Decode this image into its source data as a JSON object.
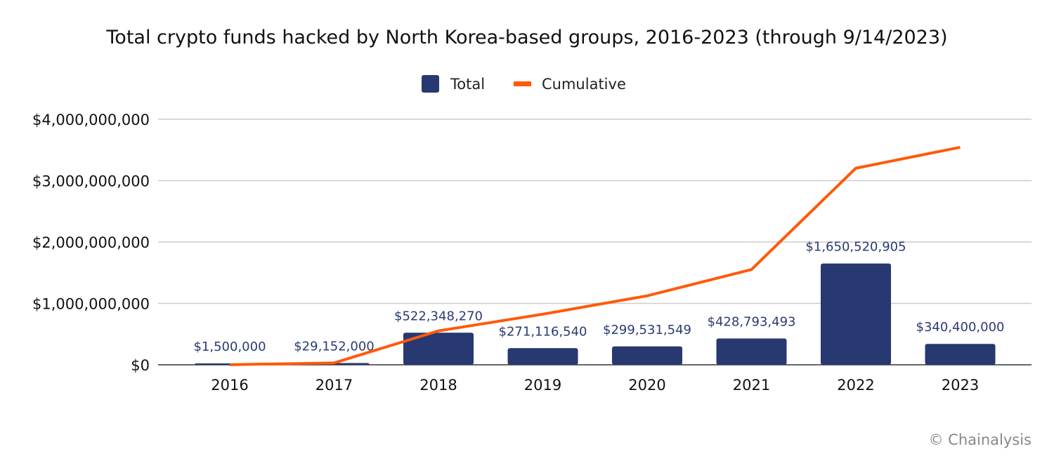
{
  "chart_data": {
    "type": "bar+line",
    "title": "Total crypto funds hacked by North Korea-based groups, 2016-2023 (through 9/14/2023)",
    "categories": [
      "2016",
      "2017",
      "2018",
      "2019",
      "2020",
      "2021",
      "2022",
      "2023"
    ],
    "series": [
      {
        "name": "Total",
        "type": "bar",
        "color": "#283870",
        "values": [
          1500000,
          29152000,
          522348270,
          271116540,
          299531549,
          428793493,
          1650520905,
          340400000
        ],
        "labels": [
          "$1,500,000",
          "$29,152,000",
          "$522,348,270",
          "$271,116,540",
          "$299,531,549",
          "$428,793,493",
          "$1,650,520,905",
          "$340,400,000"
        ]
      },
      {
        "name": "Cumulative",
        "type": "line",
        "color": "#ff5a0a",
        "values": [
          1500000,
          30652000,
          553000270,
          824116810,
          1123648359,
          1552441852,
          3202962757,
          3543362757
        ]
      }
    ],
    "ylim": [
      0,
      4000000000
    ],
    "yticks": [
      0,
      1000000000,
      2000000000,
      3000000000,
      4000000000
    ],
    "ytick_labels": [
      "$0",
      "$1,000,000,000",
      "$2,000,000,000",
      "$3,000,000,000",
      "$4,000,000,000"
    ],
    "grid": true,
    "legend_position": "top-center",
    "xlabel": "",
    "ylabel": ""
  },
  "credit": "© Chainalysis"
}
